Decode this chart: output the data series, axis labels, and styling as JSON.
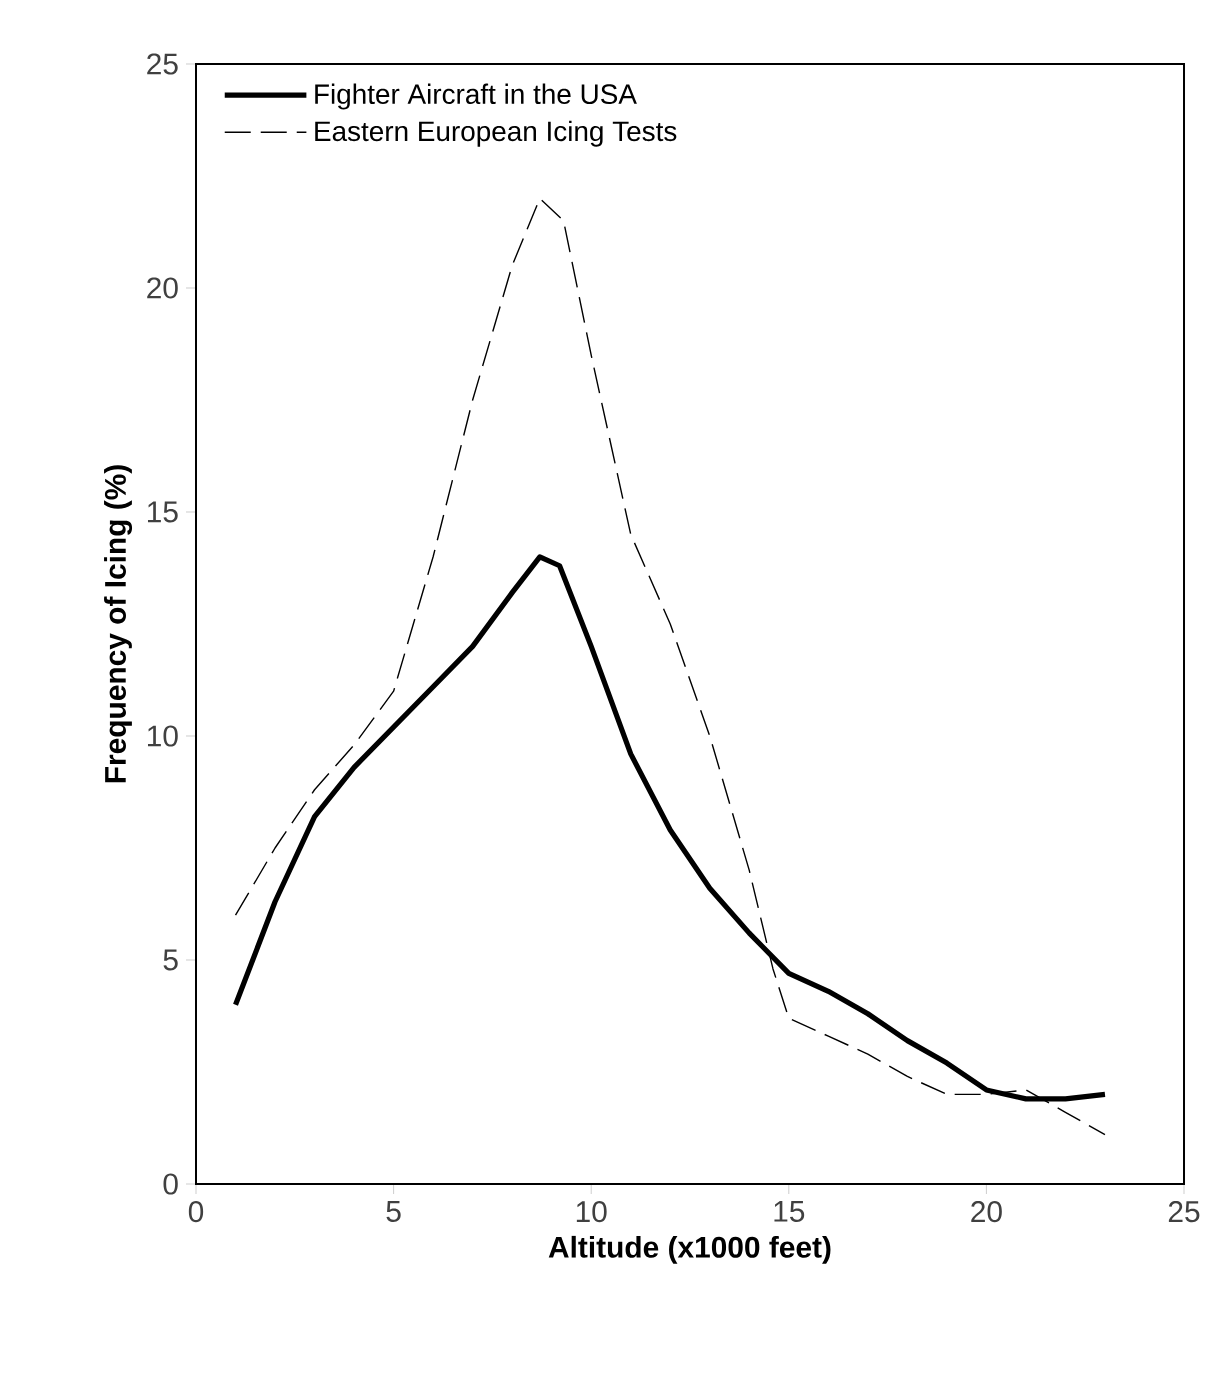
{
  "chart_data": {
    "type": "line",
    "xlabel": "Altitude (x1000 feet)",
    "ylabel": "Frequency of Icing (%)",
    "xlim": [
      0,
      25
    ],
    "ylim": [
      0,
      25
    ],
    "xticks": [
      0,
      5,
      10,
      15,
      20,
      25
    ],
    "yticks": [
      0,
      5,
      10,
      15,
      20,
      25
    ],
    "legend": "top left",
    "grid": false,
    "series": [
      {
        "name": "Fighter Aircraft in the USA",
        "color": "#000000",
        "line_style": "solid",
        "x": [
          1,
          2,
          3,
          4,
          5,
          6,
          7,
          8,
          8.7,
          9.2,
          10,
          11,
          12,
          13,
          14,
          15,
          16,
          17,
          18,
          19,
          20,
          21,
          22,
          23
        ],
        "values": [
          4,
          6.3,
          8.2,
          9.3,
          10.2,
          11.1,
          12,
          13.2,
          14,
          13.8,
          12,
          9.6,
          7.9,
          6.6,
          5.6,
          4.7,
          4.3,
          3.8,
          3.2,
          2.7,
          2.1,
          1.9,
          1.9,
          2
        ]
      },
      {
        "name": "Eastern European Icing Tests",
        "color": "#000000",
        "line_style": "dashed",
        "x": [
          1,
          2,
          3,
          4,
          5,
          6,
          7,
          8,
          8.7,
          9.3,
          10,
          11,
          12,
          13,
          14,
          14.6,
          15,
          16,
          17,
          18,
          19,
          20,
          21,
          22,
          23
        ],
        "values": [
          6,
          7.5,
          8.8,
          9.8,
          11,
          14,
          17.5,
          20.5,
          22,
          21.5,
          18.5,
          14.5,
          12.5,
          10,
          7,
          4.8,
          3.7,
          3.3,
          2.9,
          2.4,
          2,
          2,
          2.1,
          1.6,
          1.1
        ]
      }
    ]
  }
}
